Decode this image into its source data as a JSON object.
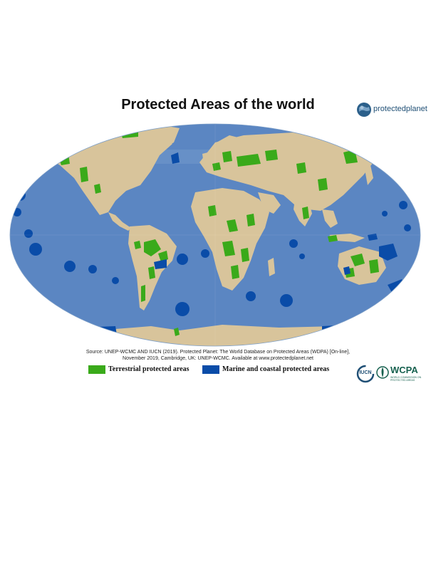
{
  "title": "Protected Areas of the world",
  "brand": {
    "name": "protectedplanet",
    "icon": "planet-logo-icon"
  },
  "source": {
    "line1": "Source: UNEP-WCMC AND IUCN (2019). Protected Planet: The World Database on Protected Areas (WDPA) [On-line],",
    "line2": "November 2019, Cambridge, UK: UNEP-WCMC. Available at www.protectedplanet.net"
  },
  "legend": [
    {
      "label": "Terrestrial protected areas",
      "color": "#3aaa1a"
    },
    {
      "label": "Marine and coastal protected areas",
      "color": "#0a4ca8"
    }
  ],
  "logos": {
    "iucn": "IUCN",
    "wcpa": "WCPA",
    "wcpa_sub": "WORLD COMMISSION ON PROTECTED AREAS"
  },
  "colors": {
    "ocean": "#5b86c2",
    "land": "#d8c49b",
    "terrestrial": "#3aaa1a",
    "marine": "#0a4ca8"
  }
}
